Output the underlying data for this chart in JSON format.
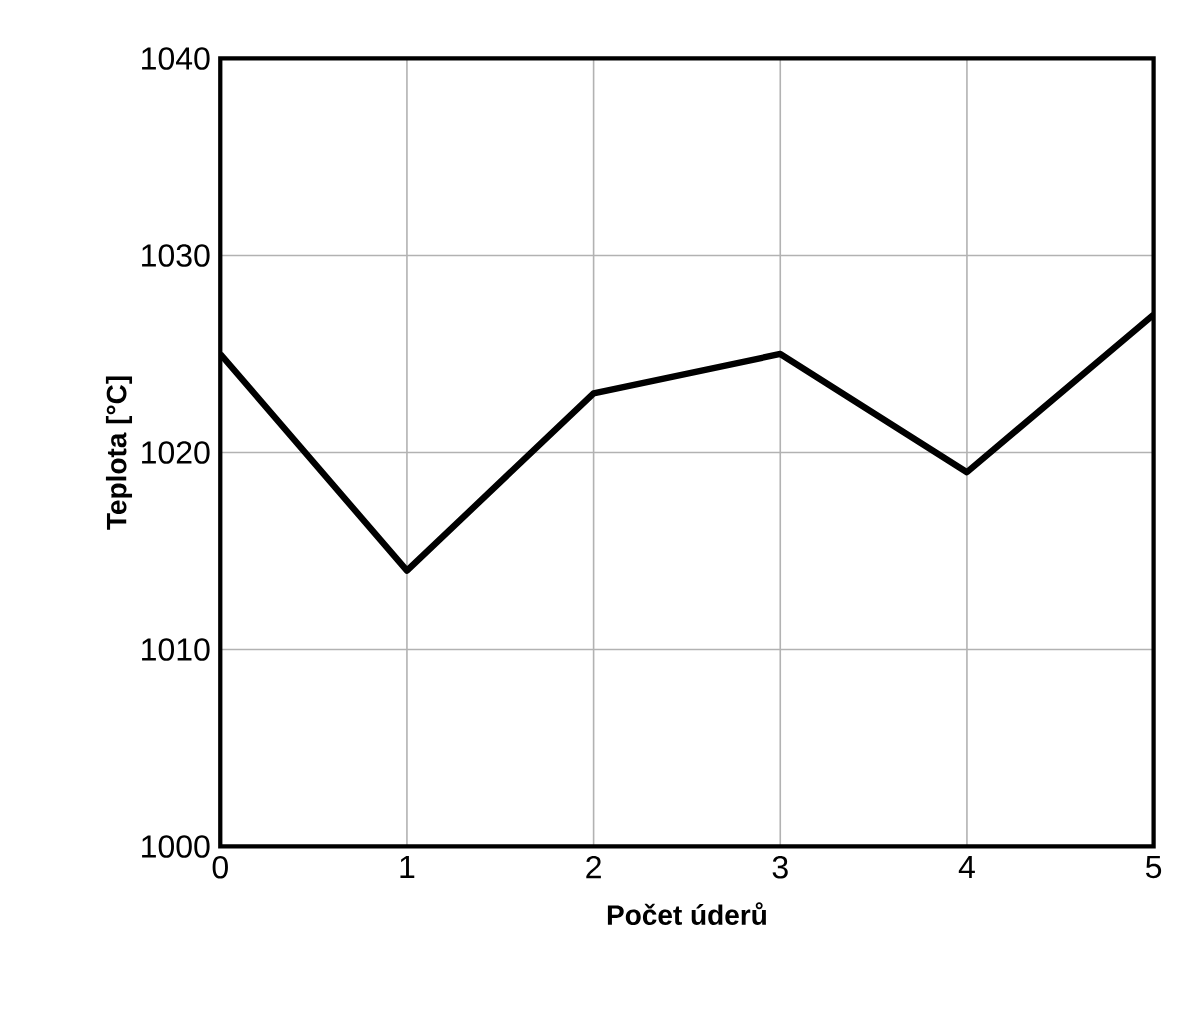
{
  "chart_data": {
    "type": "line",
    "xlabel": "Počet úderů",
    "ylabel": "Teplota [°C]",
    "x": [
      0,
      1,
      2,
      3,
      4,
      5
    ],
    "series": [
      {
        "color": "#000000",
        "values": [
          1025,
          1014,
          1023,
          1025,
          1019,
          1027
        ]
      }
    ],
    "xlim": [
      0,
      5
    ],
    "ylim": [
      1000,
      1040
    ],
    "xticks": [
      0,
      1,
      2,
      3,
      4,
      5
    ],
    "yticks": [
      1000,
      1010,
      1020,
      1030,
      1040
    ],
    "grid": true,
    "marker": "none",
    "line_style": "solid"
  }
}
